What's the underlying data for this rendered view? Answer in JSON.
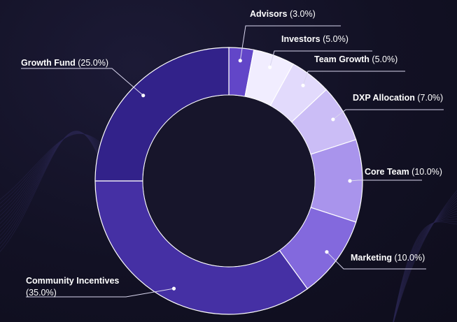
{
  "chart_data": {
    "type": "pie",
    "variant": "donut",
    "title": "",
    "slices": [
      {
        "label": "Advisors",
        "pct_text": "(3.0%)",
        "value": 3.0,
        "color": "#6246c8"
      },
      {
        "label": "Investors",
        "pct_text": "(5.0%)",
        "value": 5.0,
        "color": "#f1edff"
      },
      {
        "label": "Team Growth",
        "pct_text": "(5.0%)",
        "value": 5.0,
        "color": "#e2dafc"
      },
      {
        "label": "DXP Allocation",
        "pct_text": "(7.0%)",
        "value": 7.0,
        "color": "#cbbdf6"
      },
      {
        "label": "Core Team",
        "pct_text": "(10.0%)",
        "value": 10.0,
        "color": "#a994ec"
      },
      {
        "label": "Marketing",
        "pct_text": "(10.0%)",
        "value": 10.0,
        "color": "#8369dd"
      },
      {
        "label": "Community Incentives",
        "pct_text": "(35.0%)",
        "value": 35.0,
        "color": "#4530a4"
      },
      {
        "label": "Growth Fund",
        "pct_text": "(25.0%)",
        "value": 25.0,
        "color": "#32228a"
      }
    ],
    "start_angle_deg": 0,
    "direction": "clockwise",
    "hole_color": "#17152b",
    "separator_color": "#ffffff"
  }
}
